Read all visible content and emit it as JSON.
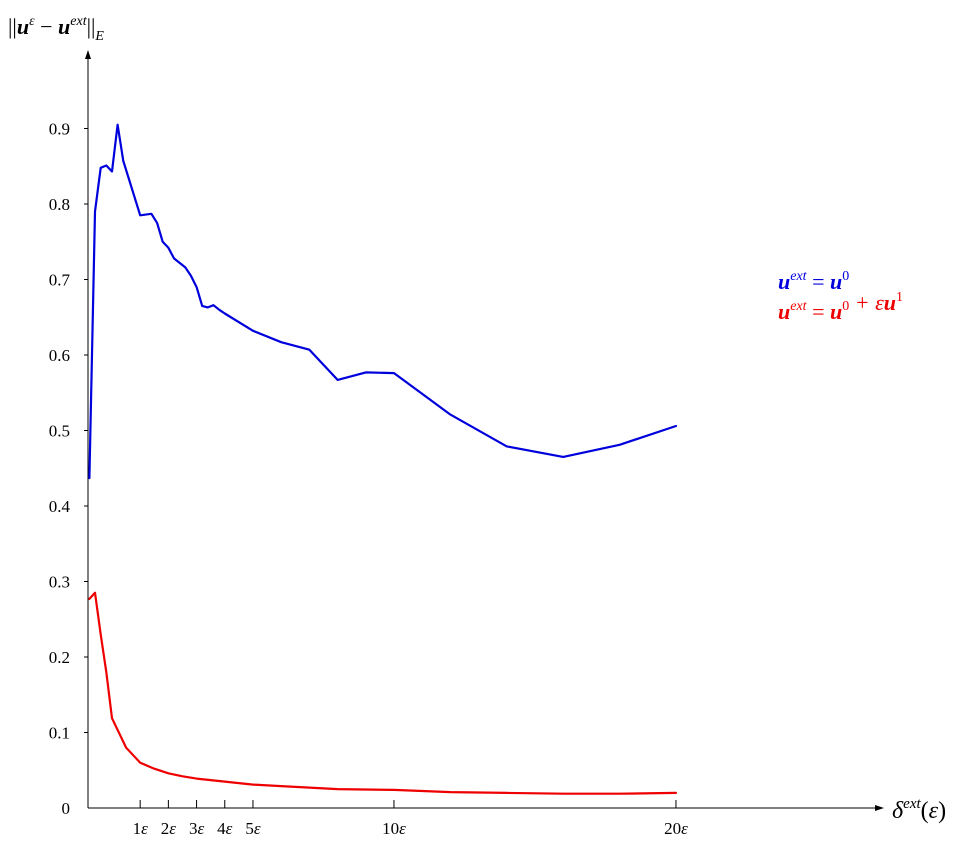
{
  "chart_data": {
    "type": "line",
    "ylabel": "||u^ε − u^ext||_E",
    "xlabel": "δ^ext(ε)",
    "xlim": [
      -0.85,
      28
    ],
    "ylim": [
      0,
      1.0
    ],
    "x_ticks": [
      {
        "value": 1,
        "label": "1ε"
      },
      {
        "value": 2,
        "label": "2ε"
      },
      {
        "value": 3,
        "label": "3ε"
      },
      {
        "value": 4,
        "label": "4ε"
      },
      {
        "value": 5,
        "label": "5ε"
      },
      {
        "value": 10,
        "label": "10ε"
      },
      {
        "value": 20,
        "label": "20ε"
      }
    ],
    "y_ticks": [
      {
        "value": 0,
        "label": "0"
      },
      {
        "value": 0.1,
        "label": "0.1"
      },
      {
        "value": 0.2,
        "label": "0.2"
      },
      {
        "value": 0.3,
        "label": "0.3"
      },
      {
        "value": 0.4,
        "label": "0.4"
      },
      {
        "value": 0.5,
        "label": "0.5"
      },
      {
        "value": 0.6,
        "label": "0.6"
      },
      {
        "value": 0.7,
        "label": "0.7"
      },
      {
        "value": 0.8,
        "label": "0.8"
      },
      {
        "value": 0.9,
        "label": "0.9"
      }
    ],
    "series": [
      {
        "name": "u^ext = u^0",
        "color": "#0000dd",
        "x": [
          -0.8,
          -0.6,
          -0.4,
          -0.2,
          0,
          0.2,
          0.4,
          1.0,
          1.4,
          1.6,
          1.8,
          2.0,
          2.2,
          2.4,
          2.6,
          2.8,
          3.0,
          3.2,
          3.4,
          3.6,
          3.8,
          4.0,
          5.0,
          6.0,
          7.0,
          8.0,
          9.0,
          10.0,
          12.0,
          14.0,
          16.0,
          18.0,
          20.0
        ],
        "y": [
          0.437,
          0.79,
          0.848,
          0.851,
          0.843,
          0.905,
          0.857,
          0.785,
          0.787,
          0.775,
          0.75,
          0.742,
          0.728,
          0.722,
          0.716,
          0.705,
          0.69,
          0.665,
          0.663,
          0.666,
          0.66,
          0.655,
          0.632,
          0.617,
          0.607,
          0.567,
          0.577,
          0.576,
          0.521,
          0.479,
          0.465,
          0.481,
          0.506
        ]
      },
      {
        "name": "u^ext = u^0 + εu^1",
        "color": "#ee0000",
        "x": [
          -0.8,
          -0.6,
          -0.4,
          -0.2,
          0,
          0.5,
          1.0,
          1.5,
          2.0,
          2.5,
          3.0,
          4.0,
          5.0,
          6.0,
          7.0,
          8.0,
          10.0,
          12.0,
          14.0,
          16.0,
          18.0,
          20.0
        ],
        "y": [
          0.277,
          0.285,
          0.23,
          0.18,
          0.119,
          0.08,
          0.06,
          0.052,
          0.046,
          0.042,
          0.039,
          0.035,
          0.031,
          0.029,
          0.027,
          0.025,
          0.024,
          0.021,
          0.02,
          0.019,
          0.019,
          0.02
        ]
      }
    ],
    "legend": {
      "placement": "right",
      "entries": [
        {
          "base": "u",
          "sup": "ext",
          "eq": " = ",
          "rhs": [
            {
              "b": "u",
              "sup": "0"
            }
          ],
          "color": "#0000dd"
        },
        {
          "base": "u",
          "sup": "ext",
          "eq": " = ",
          "rhs": [
            {
              "b": "u",
              "sup": "0"
            },
            {
              "op": " + ε"
            },
            {
              "b": "u",
              "sup": "1"
            }
          ],
          "color": "#ee0000"
        }
      ]
    },
    "grid": false
  }
}
